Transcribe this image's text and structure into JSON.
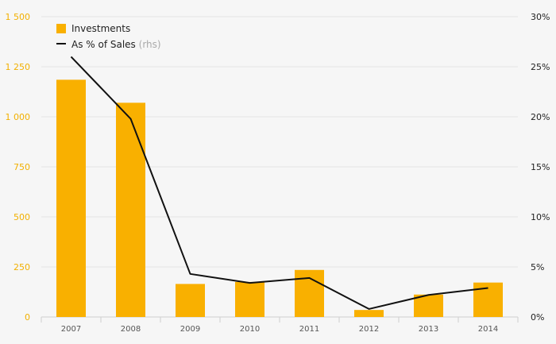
{
  "chart_data": {
    "type": "bar",
    "categories": [
      "2007",
      "2008",
      "2009",
      "2010",
      "2011",
      "2012",
      "2013",
      "2014"
    ],
    "series": [
      {
        "name": "Investments",
        "type": "bar",
        "axis": "left",
        "color": "#f9b000",
        "values": [
          1185,
          1070,
          165,
          175,
          235,
          35,
          112,
          172
        ]
      },
      {
        "name": "As % of Sales",
        "name_suffix": "(rhs)",
        "type": "line",
        "axis": "right",
        "color": "#111111",
        "values": [
          26.0,
          19.8,
          4.3,
          3.4,
          3.9,
          0.8,
          2.2,
          2.9
        ]
      }
    ],
    "ylim_left": [
      0,
      1500
    ],
    "yticks_left": [
      "0",
      "250",
      "500",
      "750",
      "1 000",
      "1 250",
      "1 500"
    ],
    "ylim_right": [
      0,
      30
    ],
    "yticks_right": [
      "0%",
      "5%",
      "10%",
      "15%",
      "20%",
      "25%",
      "30%"
    ],
    "grid": true,
    "legend_position": "top-left"
  }
}
